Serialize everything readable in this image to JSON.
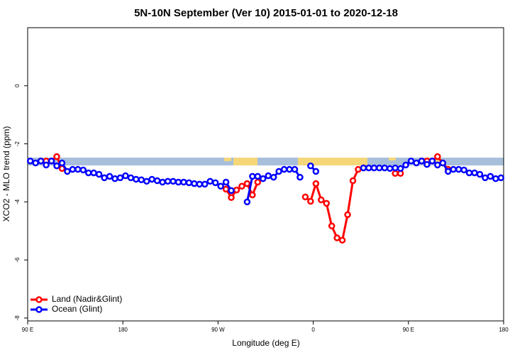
{
  "chart_data": {
    "type": "line",
    "title": "5N-10N September (Ver 10)   2015-01-01 to 2020-12-18",
    "x_label": "Longitude (deg E)",
    "y_label": "XCO2 - MLO trend (ppm)",
    "x": [
      92.5,
      97.5,
      102.5,
      107.5,
      112.5,
      117.5,
      122.5,
      127.5,
      132.5,
      137.5,
      142.5,
      147.5,
      152.5,
      157.5,
      162.5,
      167.5,
      172.5,
      177.5,
      182.5,
      187.5,
      192.5,
      197.5,
      202.5,
      207.5,
      212.5,
      217.5,
      222.5,
      227.5,
      232.5,
      237.5,
      242.5,
      247.5,
      252.5,
      257.5,
      262.5,
      267.5,
      272.5,
      277.5,
      282.5,
      287.5,
      292.5,
      297.5,
      302.5,
      307.5,
      312.5,
      317.5,
      322.5,
      327.5,
      332.5,
      337.5,
      342.5,
      347.5,
      352.5,
      357.5,
      362.5,
      367.5,
      372.5,
      377.5,
      382.5,
      387.5,
      392.5,
      397.5,
      402.5,
      407.5,
      412.5,
      417.5,
      422.5,
      427.5,
      432.5,
      437.5,
      442.5,
      447.5,
      452.5,
      457.5,
      462.5,
      467.5,
      472.5,
      477.5,
      482.5,
      487.5,
      492.5,
      497.5,
      502.5,
      507.5,
      512.5,
      517.5,
      522.5,
      527.5,
      532.5,
      537.5
    ],
    "series": [
      {
        "name": "Land (Nadir&Glint)",
        "color": "#ff0000",
        "values": [
          null,
          null,
          -2.59,
          -2.59,
          -2.59,
          -2.44,
          -2.85,
          null,
          null,
          null,
          null,
          null,
          null,
          null,
          null,
          null,
          null,
          null,
          null,
          null,
          null,
          null,
          null,
          null,
          null,
          null,
          null,
          null,
          null,
          null,
          null,
          null,
          null,
          null,
          null,
          null,
          null,
          -3.56,
          -3.85,
          -3.59,
          -3.46,
          -3.37,
          -3.76,
          -3.32,
          null,
          null,
          null,
          null,
          null,
          null,
          null,
          null,
          -3.83,
          -3.98,
          -3.37,
          -3.93,
          -4.05,
          -4.83,
          -5.24,
          -5.32,
          -4.44,
          -3.27,
          -2.88,
          -2.83,
          null,
          null,
          null,
          null,
          null,
          -3.02,
          -3.02,
          null,
          null,
          null,
          -2.59,
          -2.59,
          -2.59,
          -2.44,
          -2.66,
          -2.88,
          null,
          null,
          null,
          null,
          null,
          null,
          null,
          null,
          null,
          null
        ]
      },
      {
        "name": "Ocean (Glint)",
        "color": "#0000ff",
        "values": [
          -2.59,
          -2.66,
          -2.59,
          -2.73,
          -2.59,
          -2.76,
          -2.66,
          -2.95,
          -2.88,
          -2.88,
          -2.9,
          -3.0,
          -3.0,
          -3.05,
          -3.17,
          -3.12,
          -3.2,
          -3.17,
          -3.1,
          -3.17,
          -3.22,
          -3.24,
          -3.29,
          -3.22,
          -3.27,
          -3.32,
          -3.29,
          -3.29,
          -3.32,
          -3.32,
          -3.34,
          -3.37,
          -3.39,
          -3.39,
          -3.29,
          -3.34,
          -3.46,
          -3.32,
          -3.61,
          null,
          null,
          -4.0,
          -3.12,
          -3.12,
          -3.2,
          -3.1,
          -3.15,
          -2.95,
          -2.88,
          -2.88,
          -2.88,
          -3.15,
          null,
          -2.76,
          -2.95,
          null,
          null,
          null,
          null,
          null,
          null,
          null,
          null,
          -2.83,
          -2.83,
          -2.83,
          -2.83,
          -2.83,
          -2.85,
          -2.83,
          -2.85,
          -2.73,
          -2.59,
          -2.66,
          -2.59,
          -2.71,
          -2.59,
          -2.73,
          -2.66,
          -2.95,
          -2.88,
          -2.88,
          -2.9,
          -3.0,
          -3.0,
          -3.05,
          -3.17,
          -3.12,
          -3.2,
          -3.17
        ]
      }
    ],
    "xlim": [
      90,
      540
    ],
    "xticks": [
      {
        "value": 90,
        "label": "90 E"
      },
      180,
      {
        "value": 270,
        "label": "90 W"
      },
      {
        "value": 360,
        "label": "0"
      },
      {
        "value": 450,
        "label": "90 E"
      },
      {
        "value": 540,
        "label": "180"
      }
    ],
    "ylim": [
      -8.1,
      2
    ],
    "yticks": [
      0,
      -2,
      -4,
      -6,
      -8
    ],
    "legend": "bottomleft"
  }
}
